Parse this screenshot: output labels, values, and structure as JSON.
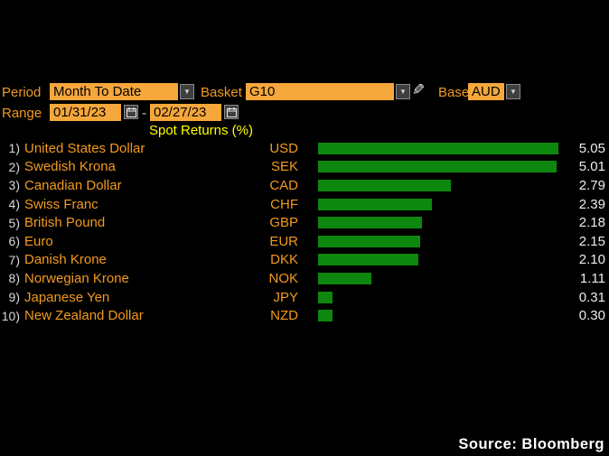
{
  "controls": {
    "period_label": "Period",
    "period_value": "Month To Date",
    "basket_label": "Basket",
    "basket_value": "G10",
    "base_label": "Base",
    "base_value": "AUD",
    "range_label": "Range",
    "range_start": "01/31/23",
    "range_end": "02/27/23",
    "range_separator": "-"
  },
  "icons": {
    "dropdown_arrow": "▼",
    "pencil": "✎"
  },
  "chart_data": {
    "type": "bar",
    "orientation": "horizontal",
    "title": "Spot Returns (%)",
    "value_unit": "%",
    "xlim": [
      0,
      5.05
    ],
    "legend": "none",
    "grid": "off",
    "bar_color": "#0e870e",
    "categories": [
      "United States Dollar",
      "Swedish Krona",
      "Canadian Dollar",
      "Swiss Franc",
      "British Pound",
      "Euro",
      "Danish Krone",
      "Norwegian Krone",
      "Japanese Yen",
      "New Zealand Dollar"
    ],
    "values": [
      5.05,
      5.01,
      2.79,
      2.39,
      2.18,
      2.15,
      2.1,
      1.11,
      0.31,
      0.3
    ],
    "rows": [
      {
        "rank": "1)",
        "name": "United States Dollar",
        "code": "USD",
        "value": 5.05,
        "value_text": "5.05"
      },
      {
        "rank": "2)",
        "name": "Swedish Krona",
        "code": "SEK",
        "value": 5.01,
        "value_text": "5.01"
      },
      {
        "rank": "3)",
        "name": "Canadian Dollar",
        "code": "CAD",
        "value": 2.79,
        "value_text": "2.79"
      },
      {
        "rank": "4)",
        "name": "Swiss Franc",
        "code": "CHF",
        "value": 2.39,
        "value_text": "2.39"
      },
      {
        "rank": "5)",
        "name": "British Pound",
        "code": "GBP",
        "value": 2.18,
        "value_text": "2.18"
      },
      {
        "rank": "6)",
        "name": "Euro",
        "code": "EUR",
        "value": 2.15,
        "value_text": "2.15"
      },
      {
        "rank": "7)",
        "name": "Danish Krone",
        "code": "DKK",
        "value": 2.1,
        "value_text": "2.10"
      },
      {
        "rank": "8)",
        "name": "Norwegian Krone",
        "code": "NOK",
        "value": 1.11,
        "value_text": "1.11"
      },
      {
        "rank": "9)",
        "name": "Japanese Yen",
        "code": "JPY",
        "value": 0.31,
        "value_text": "0.31"
      },
      {
        "rank": "10)",
        "name": "New Zealand Dollar",
        "code": "NZD",
        "value": 0.3,
        "value_text": "0.30"
      }
    ]
  },
  "footer": {
    "source": "Source: Bloomberg"
  },
  "colors": {
    "background": "#000000",
    "accent_orange_text": "#f39a1e",
    "field_orange": "#f6a73b",
    "title_yellow": "#ffff00",
    "bar_green": "#0e870e",
    "value_white": "#ececec",
    "button_gray": "#3f3f3f"
  }
}
